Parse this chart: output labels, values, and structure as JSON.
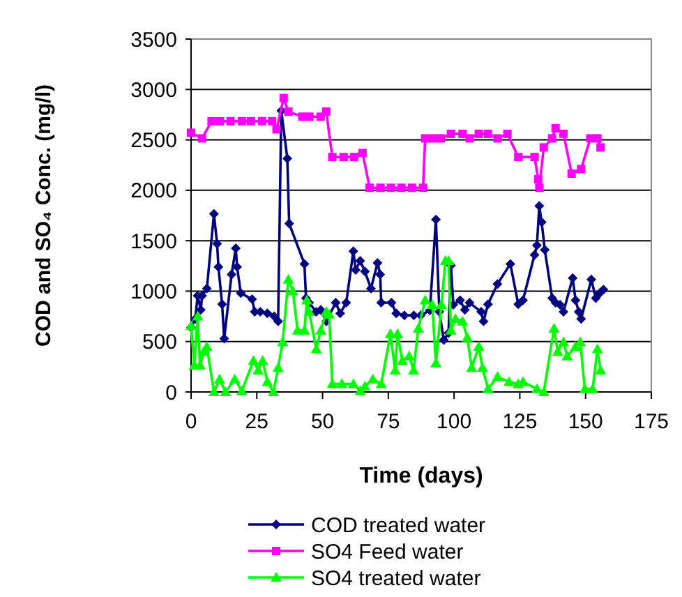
{
  "chart_data": {
    "type": "line",
    "xlabel": "Time (days)",
    "ylabel": "COD and SO₄ Conc. (mg/l)",
    "xlim": [
      0,
      175
    ],
    "xticks": [
      0,
      25,
      50,
      75,
      100,
      125,
      150,
      175
    ],
    "ylim": [
      0,
      3500
    ],
    "yticks": [
      0,
      500,
      1000,
      1500,
      2000,
      2500,
      3000,
      3500
    ],
    "grid": "y",
    "legend": "bottom",
    "line_style": "solid",
    "series": [
      {
        "name": "COD treated water",
        "color": "#000080",
        "marker": "diamond",
        "x": [
          0,
          1.6,
          2.5,
          3.7,
          4.2,
          6,
          8.7,
          9.9,
          10.4,
          11.8,
          12.6,
          15.4,
          17,
          17.5,
          18.9,
          23.2,
          24.2,
          26.3,
          29,
          31.6,
          33.1,
          34.3,
          36.6,
          37.3,
          43.1,
          43.7,
          44.9,
          47.6,
          49.3,
          51.4,
          55,
          56.7,
          59,
          61.7,
          62.6,
          64.3,
          66.1,
          68.4,
          70.9,
          71.9,
          72.3,
          76.2,
          78,
          81.1,
          84.7,
          87.3,
          90.8,
          93.1,
          94.4,
          96.1,
          97.9,
          98.8,
          99.7,
          102.3,
          104.1,
          105.9,
          110.3,
          111.2,
          112.9,
          116.5,
          121.4,
          124.4,
          126.2,
          130.6,
          131.5,
          132.4,
          133.3,
          134.5,
          137.3,
          138.6,
          140.3,
          141.6,
          145.1,
          146.2,
          147.4,
          148.3,
          152.2,
          153.9,
          155.4,
          156.8
        ],
        "values": [
          640,
          725,
          955,
          815,
          955,
          1025,
          1765,
          1470,
          1240,
          870,
          530,
          1165,
          1425,
          1240,
          980,
          920,
          795,
          795,
          780,
          750,
          700,
          2790,
          2315,
          1670,
          1270,
          930,
          885,
          795,
          815,
          700,
          885,
          780,
          885,
          1395,
          1210,
          1300,
          1195,
          1025,
          1280,
          1165,
          885,
          885,
          780,
          760,
          760,
          760,
          810,
          1710,
          795,
          515,
          585,
          1255,
          865,
          910,
          815,
          885,
          795,
          700,
          870,
          1070,
          1270,
          870,
          910,
          1360,
          1455,
          1845,
          1685,
          1410,
          930,
          885,
          865,
          795,
          1130,
          910,
          795,
          725,
          1115,
          930,
          980,
          1015
        ]
      },
      {
        "name": "SO4 Feed water",
        "color": "#ff00ff",
        "marker": "square",
        "x": [
          0,
          4.2,
          7.8,
          11,
          15,
          19.3,
          22.8,
          27,
          30.8,
          32.5,
          35.2,
          37,
          42.3,
          45,
          49.3,
          51.4,
          53.7,
          58,
          62,
          65.2,
          67.9,
          72,
          76,
          80,
          84,
          88.2,
          89,
          92,
          95,
          98.8,
          103.2,
          105.9,
          109.4,
          112.9,
          116.5,
          120.3,
          124.4,
          130.6,
          132,
          132.4,
          134.1,
          137.3,
          138.6,
          141.6,
          144.7,
          148.3,
          151.8,
          154.5,
          155.7
        ],
        "values": [
          2570,
          2515,
          2685,
          2685,
          2685,
          2685,
          2685,
          2685,
          2685,
          2605,
          2915,
          2780,
          2730,
          2730,
          2730,
          2780,
          2330,
          2330,
          2330,
          2370,
          2025,
          2025,
          2025,
          2025,
          2025,
          2025,
          2515,
          2515,
          2515,
          2560,
          2560,
          2515,
          2560,
          2560,
          2515,
          2560,
          2330,
          2330,
          2110,
          2025,
          2425,
          2515,
          2615,
          2560,
          2165,
          2210,
          2515,
          2515,
          2425
        ]
      },
      {
        "name": "SO4 treated water",
        "color": "#00ff00",
        "marker": "triangle",
        "x": [
          0,
          1.2,
          2.5,
          3.4,
          4.8,
          6,
          8.7,
          10.8,
          13.1,
          16.6,
          19.3,
          23.7,
          25.5,
          27.2,
          29,
          31.3,
          33.1,
          34.8,
          37,
          38.7,
          40.5,
          43.1,
          44,
          44.9,
          47.6,
          49.3,
          51.4,
          52.5,
          53.7,
          57.3,
          61.7,
          64.3,
          66.1,
          69.1,
          72.3,
          75.8,
          77.6,
          78.5,
          80.3,
          82.9,
          84.6,
          86.4,
          89,
          91.7,
          93.1,
          95.2,
          96.7,
          97.9,
          98.8,
          100.5,
          103.2,
          105,
          106.7,
          109.4,
          110.8,
          112.9,
          116.5,
          120.9,
          124.4,
          126.2,
          131.5,
          134.1,
          138,
          139.4,
          141.6,
          143,
          146.2,
          148,
          149.7,
          152.7,
          154.5,
          155.7
        ],
        "values": [
          655,
          265,
          750,
          265,
          400,
          450,
          0,
          125,
          0,
          125,
          10,
          310,
          215,
          310,
          100,
          0,
          240,
          495,
          1115,
          1000,
          610,
          610,
          910,
          795,
          425,
          610,
          795,
          770,
          80,
          80,
          80,
          10,
          55,
          125,
          80,
          575,
          215,
          575,
          310,
          355,
          215,
          630,
          910,
          865,
          285,
          865,
          1300,
          1300,
          610,
          725,
          700,
          540,
          240,
          450,
          240,
          30,
          150,
          100,
          80,
          100,
          30,
          0,
          630,
          400,
          495,
          355,
          450,
          495,
          30,
          30,
          425,
          215
        ]
      }
    ]
  }
}
